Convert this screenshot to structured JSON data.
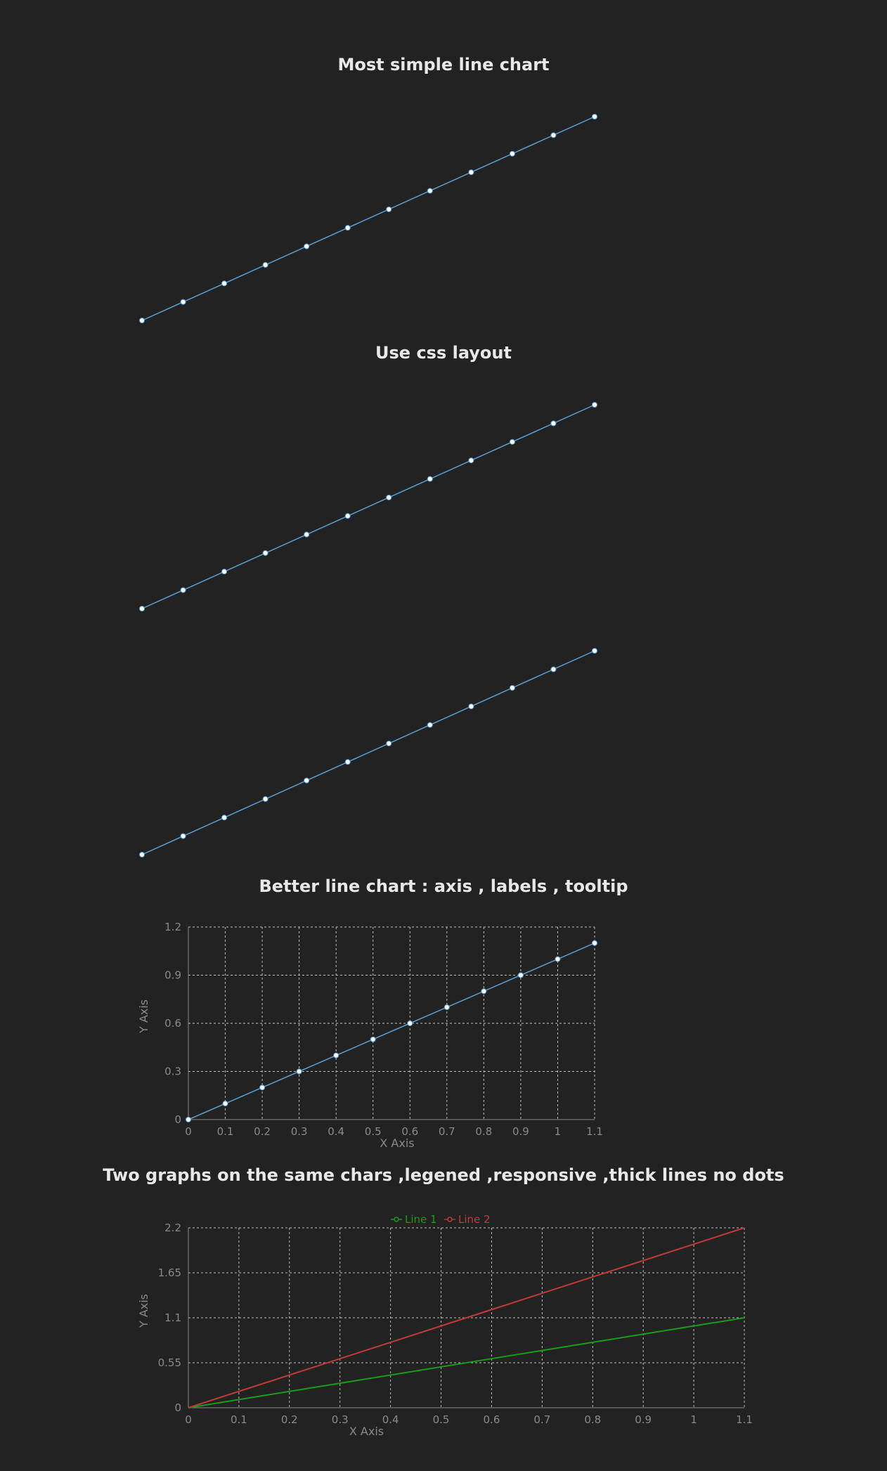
{
  "titles": {
    "c1": "Most simple line chart",
    "c2": "Use css layout",
    "c4": "Better line chart : axis , labels , tooltip",
    "c5": "Two graphs on the same chars ,legened ,responsive ,thick lines no dots"
  },
  "colors": {
    "line": "#5a9fd4",
    "dot": "#ffffff",
    "grid": "#bdbdbd",
    "line1": "#1a9a1a",
    "line2": "#c0393b",
    "bg": "#222222"
  },
  "chart_data": [
    {
      "type": "line",
      "title": "Most simple line chart",
      "x": [
        0,
        0.1,
        0.2,
        0.3,
        0.4,
        0.5,
        0.6,
        0.7,
        0.8,
        0.9,
        1,
        1.1
      ],
      "y": [
        0,
        0.1,
        0.2,
        0.3,
        0.4,
        0.5,
        0.6,
        0.7,
        0.8,
        0.9,
        1,
        1.1
      ],
      "axes": false,
      "grid": false,
      "dots": true
    },
    {
      "type": "line",
      "title": "Use css layout",
      "x": [
        0,
        0.1,
        0.2,
        0.3,
        0.4,
        0.5,
        0.6,
        0.7,
        0.8,
        0.9,
        1,
        1.1
      ],
      "y": [
        0,
        0.1,
        0.2,
        0.3,
        0.4,
        0.5,
        0.6,
        0.7,
        0.8,
        0.9,
        1,
        1.1
      ],
      "axes": false,
      "grid": false,
      "dots": true
    },
    {
      "type": "line",
      "title": "",
      "x": [
        0,
        0.1,
        0.2,
        0.3,
        0.4,
        0.5,
        0.6,
        0.7,
        0.8,
        0.9,
        1,
        1.1
      ],
      "y": [
        0,
        0.1,
        0.2,
        0.3,
        0.4,
        0.5,
        0.6,
        0.7,
        0.8,
        0.9,
        1,
        1.1
      ],
      "axes": false,
      "grid": false,
      "dots": true
    },
    {
      "type": "line",
      "title": "Better line chart : axis , labels , tooltip",
      "x": [
        0,
        0.1,
        0.2,
        0.3,
        0.4,
        0.5,
        0.6,
        0.7,
        0.8,
        0.9,
        1,
        1.1
      ],
      "y": [
        0,
        0.1,
        0.2,
        0.3,
        0.4,
        0.5,
        0.6,
        0.7,
        0.8,
        0.9,
        1,
        1.1
      ],
      "xticks": [
        "0",
        "0.1",
        "0.2",
        "0.3",
        "0.4",
        "0.5",
        "0.6",
        "0.7",
        "0.8",
        "0.9",
        "1",
        "1.1"
      ],
      "yticks": [
        "0",
        "0.3",
        "0.6",
        "0.9",
        "1.2"
      ],
      "xlim": [
        0,
        1.1
      ],
      "ylim": [
        0,
        1.2
      ],
      "xlabel": "X Axis",
      "ylabel": "Y Axis",
      "grid": true,
      "dots": true
    },
    {
      "type": "line",
      "title": "Two graphs on the same chars ,legened ,responsive ,thick lines no dots",
      "x": [
        0,
        0.1,
        0.2,
        0.3,
        0.4,
        0.5,
        0.6,
        0.7,
        0.8,
        0.9,
        1,
        1.1
      ],
      "series": [
        {
          "name": "Line 1",
          "values": [
            0,
            0.1,
            0.2,
            0.3,
            0.4,
            0.5,
            0.6,
            0.7,
            0.8,
            0.9,
            1,
            1.1
          ]
        },
        {
          "name": "Line 2",
          "values": [
            0,
            0.2,
            0.4,
            0.6,
            0.8,
            1,
            1.2,
            1.4,
            1.6,
            1.8,
            2,
            2.2
          ]
        }
      ],
      "xticks": [
        "0",
        "0.1",
        "0.2",
        "0.3",
        "0.4",
        "0.5",
        "0.6",
        "0.7",
        "0.8",
        "0.9",
        "1",
        "1.1"
      ],
      "yticks": [
        "0",
        "0.55",
        "1.1",
        "1.65",
        "2.2"
      ],
      "xlim": [
        0,
        1.1
      ],
      "ylim": [
        0,
        2.2
      ],
      "xlabel": "X Axis",
      "ylabel": "Y Axis",
      "legend": "top-center",
      "grid": true,
      "dots": false
    }
  ]
}
